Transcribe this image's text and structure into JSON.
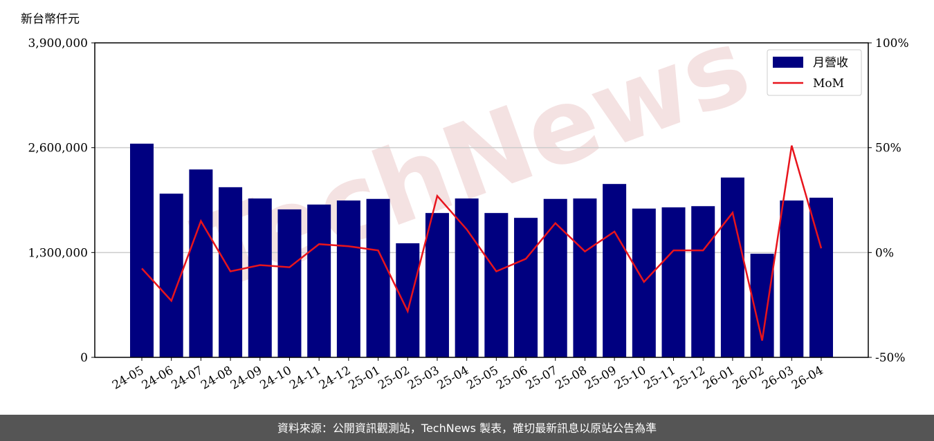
{
  "chart_data": {
    "type": "bar-line",
    "ylabel": "新台幣仟元",
    "categories": [
      "24-05",
      "24-06",
      "24-07",
      "24-08",
      "24-09",
      "24-10",
      "24-11",
      "24-12",
      "25-01",
      "25-02",
      "25-03",
      "25-04",
      "25-05",
      "25-06",
      "25-07",
      "25-08",
      "25-09",
      "25-10",
      "25-11",
      "25-12",
      "26-01",
      "26-02",
      "26-03",
      "26-04"
    ],
    "series": [
      {
        "name": "月營收",
        "type": "bar",
        "color": "#000080",
        "values": [
          2650000,
          2030000,
          2330000,
          2110000,
          1970000,
          1835000,
          1895000,
          1945000,
          1965000,
          1415000,
          1790000,
          1970000,
          1790000,
          1730000,
          1965000,
          1970000,
          2150000,
          1845000,
          1860000,
          1875000,
          2230000,
          1285000,
          1945000,
          1980000
        ]
      },
      {
        "name": "MoM",
        "type": "line",
        "color": "#e8141c",
        "axis": "y2",
        "values": [
          -7.6,
          -23,
          15,
          -9,
          -6,
          -7,
          4,
          3,
          1,
          -28,
          27,
          11,
          -9,
          -3,
          14,
          0.5,
          10,
          -14,
          1,
          1,
          19,
          -42,
          51,
          2
        ]
      }
    ],
    "ylim": [
      0,
      3900000
    ],
    "yticks": [
      0,
      {
        "value": 1300000,
        "label": "1,300,000"
      },
      {
        "value": 2600000,
        "label": "2,600,000"
      },
      {
        "value": 3900000,
        "label": "3,900,000"
      }
    ],
    "y2lim": [
      -50,
      100
    ],
    "y2ticks": [
      {
        "value": -50,
        "label": "-50%"
      },
      {
        "value": 0,
        "label": "0%"
      },
      {
        "value": 50,
        "label": "50%"
      },
      {
        "value": 100,
        "label": "100%"
      }
    ],
    "grid": true,
    "legend": "upper right",
    "watermark": "TechNews"
  },
  "footer": "資料來源：公開資訊觀測站，TechNews 製表，確切最新訊息以原站公告為準"
}
